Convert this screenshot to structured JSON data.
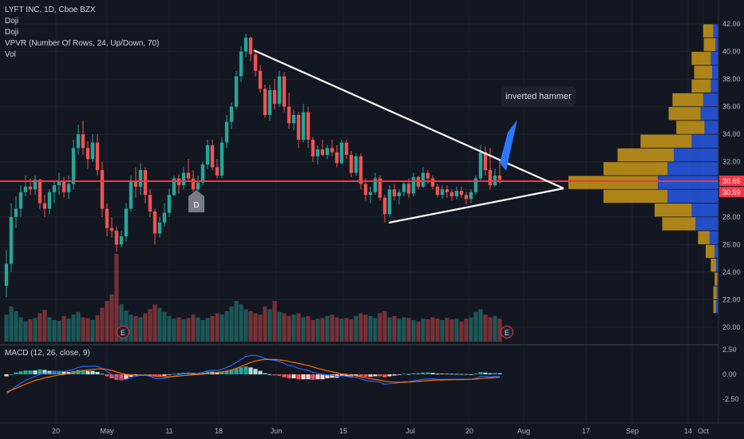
{
  "legend": {
    "title": "LYFT INC, 1D, Cboe BZX",
    "lines": [
      "Doji",
      "Doji",
      "VPVR (Number Of Rows, 24, Up/Down, 70)",
      "Vol"
    ]
  },
  "annotation": {
    "text": "inverted hammer"
  },
  "marker_d": "D",
  "marker_e": "E",
  "colors": {
    "bg": "#131722",
    "up": "#26a69a",
    "down": "#ef5350",
    "hline": "#f23645",
    "line": "#ffffff",
    "profile_up": "#2962ff",
    "profile_down": "#d4a017"
  },
  "chart_data": {
    "type": "candlestick",
    "symbol": "LYFT INC",
    "interval": "1D",
    "price_axis": {
      "ticks": [
        "42.00",
        "40.00",
        "38.00",
        "36.00",
        "34.00",
        "32.00",
        "30.00",
        "28.00",
        "26.00",
        "24.00",
        "22.00",
        "20.00"
      ],
      "range": [
        19.1,
        43.0
      ]
    },
    "price_labels": [
      "30.65",
      "30.59"
    ],
    "horizontal_line": 30.65,
    "x_axis_ticks": [
      "20",
      "May",
      "11",
      "18",
      "Jun",
      "15",
      "Jul",
      "20",
      "Aug",
      "17",
      "Sep",
      "14",
      "Oct"
    ],
    "macd": {
      "label": "MACD (12, 26, close, 9)",
      "ticks": [
        "2.50",
        "0.00",
        "-2.50"
      ],
      "range": [
        -3.6,
        3.0
      ]
    },
    "candles": [
      [
        23.0,
        25.6,
        22.2,
        24.6
      ],
      [
        24.6,
        29.0,
        24.0,
        28.0
      ],
      [
        28.0,
        29.5,
        27.2,
        28.6
      ],
      [
        28.6,
        30.3,
        28.0,
        29.8
      ],
      [
        29.8,
        31.0,
        29.5,
        30.2
      ],
      [
        30.2,
        30.8,
        29.6,
        30.0
      ],
      [
        30.0,
        31.0,
        29.6,
        30.7
      ],
      [
        30.7,
        30.8,
        28.6,
        29.0
      ],
      [
        29.0,
        29.6,
        28.0,
        28.6
      ],
      [
        28.6,
        30.0,
        28.2,
        29.8
      ],
      [
        29.8,
        30.6,
        29.0,
        30.3
      ],
      [
        30.3,
        31.2,
        29.6,
        30.6
      ],
      [
        30.6,
        30.9,
        29.4,
        29.8
      ],
      [
        29.8,
        31.0,
        29.3,
        30.4
      ],
      [
        30.4,
        33.6,
        30.0,
        33.0
      ],
      [
        33.0,
        34.7,
        32.5,
        34.0
      ],
      [
        34.0,
        35.0,
        32.5,
        33.0
      ],
      [
        33.0,
        33.5,
        31.5,
        32.2
      ],
      [
        32.2,
        34.0,
        32.0,
        33.4
      ],
      [
        33.4,
        34.0,
        31.0,
        31.4
      ],
      [
        31.4,
        32.0,
        28.0,
        28.6
      ],
      [
        28.6,
        29.0,
        26.6,
        27.2
      ],
      [
        27.2,
        28.0,
        26.5,
        27.0
      ],
      [
        27.0,
        27.3,
        25.5,
        26.0
      ],
      [
        26.0,
        27.0,
        25.8,
        26.6
      ],
      [
        26.6,
        29.0,
        26.2,
        28.6
      ],
      [
        28.6,
        31.0,
        28.4,
        30.6
      ],
      [
        30.6,
        31.6,
        29.4,
        30.2
      ],
      [
        30.2,
        31.9,
        29.6,
        31.4
      ],
      [
        31.4,
        31.6,
        29.0,
        29.6
      ],
      [
        29.6,
        30.0,
        28.0,
        28.4
      ],
      [
        28.4,
        28.6,
        26.0,
        26.8
      ],
      [
        26.8,
        28.0,
        26.5,
        27.6
      ],
      [
        27.6,
        29.0,
        27.3,
        28.3
      ],
      [
        28.3,
        30.0,
        28.0,
        29.6
      ],
      [
        29.6,
        31.0,
        29.5,
        30.8
      ],
      [
        30.8,
        31.1,
        29.7,
        30.3
      ],
      [
        30.3,
        31.6,
        30.0,
        31.2
      ],
      [
        31.2,
        32.2,
        30.6,
        30.8
      ],
      [
        30.8,
        31.4,
        29.8,
        30.0
      ],
      [
        30.0,
        31.0,
        29.9,
        30.5
      ],
      [
        30.5,
        32.0,
        30.3,
        31.8
      ],
      [
        31.8,
        33.6,
        31.5,
        33.2
      ],
      [
        33.2,
        33.6,
        31.4,
        31.6
      ],
      [
        31.6,
        32.2,
        30.8,
        31.0
      ],
      [
        31.0,
        33.8,
        30.8,
        33.4
      ],
      [
        33.4,
        35.4,
        33.0,
        34.9
      ],
      [
        34.9,
        36.3,
        34.4,
        36.0
      ],
      [
        36.0,
        38.6,
        35.8,
        38.2
      ],
      [
        38.2,
        40.4,
        37.8,
        40.0
      ],
      [
        40.0,
        41.3,
        39.6,
        41.0
      ],
      [
        41.0,
        41.1,
        39.3,
        39.8
      ],
      [
        39.8,
        40.0,
        38.2,
        38.6
      ],
      [
        38.6,
        39.0,
        37.0,
        37.3
      ],
      [
        37.3,
        37.6,
        35.2,
        35.4
      ],
      [
        35.4,
        37.6,
        35.0,
        37.2
      ],
      [
        37.2,
        38.0,
        35.8,
        36.2
      ],
      [
        36.2,
        38.6,
        36.0,
        38.2
      ],
      [
        38.2,
        38.5,
        35.6,
        36.0
      ],
      [
        36.0,
        37.0,
        34.4,
        34.8
      ],
      [
        34.8,
        35.8,
        34.3,
        35.4
      ],
      [
        35.4,
        35.6,
        33.0,
        33.6
      ],
      [
        33.6,
        36.2,
        33.4,
        35.6
      ],
      [
        35.6,
        36.0,
        33.0,
        33.6
      ],
      [
        33.6,
        33.8,
        32.0,
        32.4
      ],
      [
        32.4,
        33.2,
        31.8,
        32.9
      ],
      [
        32.9,
        33.6,
        32.4,
        32.5
      ],
      [
        32.5,
        33.2,
        32.2,
        33.0
      ],
      [
        33.0,
        33.6,
        32.4,
        32.7
      ],
      [
        32.7,
        33.2,
        31.6,
        31.9
      ],
      [
        31.9,
        33.6,
        31.8,
        33.4
      ],
      [
        33.4,
        33.6,
        32.2,
        32.5
      ],
      [
        32.5,
        32.8,
        30.9,
        31.2
      ],
      [
        31.2,
        32.6,
        31.0,
        32.4
      ],
      [
        32.4,
        32.6,
        30.0,
        30.4
      ],
      [
        30.4,
        30.8,
        29.2,
        29.6
      ],
      [
        29.6,
        30.2,
        29.0,
        29.8
      ],
      [
        29.8,
        31.2,
        29.6,
        30.8
      ],
      [
        30.8,
        31.0,
        29.2,
        29.4
      ],
      [
        29.4,
        29.6,
        27.6,
        28.2
      ],
      [
        28.2,
        30.3,
        28.0,
        30.0
      ],
      [
        30.0,
        30.4,
        29.2,
        29.5
      ],
      [
        29.5,
        30.0,
        28.9,
        29.8
      ],
      [
        29.8,
        30.6,
        29.5,
        30.4
      ],
      [
        30.4,
        30.8,
        29.4,
        29.7
      ],
      [
        29.7,
        31.2,
        29.5,
        30.9
      ],
      [
        30.9,
        31.0,
        30.0,
        30.2
      ],
      [
        30.2,
        31.6,
        30.1,
        31.2
      ],
      [
        31.2,
        31.4,
        30.4,
        30.8
      ],
      [
        30.8,
        31.0,
        30.0,
        30.2
      ],
      [
        30.2,
        30.4,
        29.4,
        29.6
      ],
      [
        29.6,
        30.3,
        29.3,
        30.0
      ],
      [
        30.0,
        30.3,
        29.4,
        29.8
      ],
      [
        29.8,
        30.0,
        29.2,
        29.5
      ],
      [
        29.5,
        30.2,
        29.3,
        29.9
      ],
      [
        29.9,
        30.2,
        29.4,
        29.6
      ],
      [
        29.6,
        29.8,
        28.9,
        29.3
      ],
      [
        29.3,
        30.0,
        29.0,
        29.8
      ],
      [
        29.8,
        31.0,
        29.6,
        30.8
      ],
      [
        30.8,
        33.2,
        30.6,
        32.7
      ],
      [
        32.7,
        33.1,
        31.0,
        31.4
      ],
      [
        31.4,
        33.0,
        30.0,
        30.3
      ],
      [
        30.3,
        31.5,
        30.2,
        31.0
      ],
      [
        31.0,
        32.2,
        30.4,
        30.7
      ]
    ],
    "volume": [
      40,
      52,
      45,
      36,
      30,
      33,
      35,
      42,
      47,
      36,
      32,
      31,
      38,
      34,
      40,
      44,
      36,
      35,
      32,
      39,
      50,
      60,
      70,
      130,
      55,
      46,
      40,
      38,
      36,
      42,
      48,
      55,
      50,
      44,
      38,
      34,
      36,
      33,
      35,
      40,
      36,
      32,
      35,
      38,
      42,
      40,
      45,
      52,
      60,
      55,
      48,
      45,
      42,
      40,
      52,
      48,
      60,
      44,
      42,
      38,
      40,
      42,
      36,
      38,
      32,
      34,
      35,
      38,
      40,
      36,
      34,
      35,
      33,
      38,
      42,
      40,
      38,
      35,
      42,
      45,
      36,
      38,
      34,
      36,
      35,
      32,
      30,
      34,
      33,
      36,
      34,
      32,
      35,
      33,
      34,
      30,
      34,
      36,
      44,
      48,
      40,
      36,
      38,
      34
    ],
    "volume_profile": [
      {
        "price": 41.5,
        "up": 8,
        "down": 16
      },
      {
        "price": 40.5,
        "up": 5,
        "down": 18
      },
      {
        "price": 39.5,
        "up": 12,
        "down": 30
      },
      {
        "price": 38.5,
        "up": 10,
        "down": 28
      },
      {
        "price": 37.5,
        "up": 12,
        "down": 30
      },
      {
        "price": 36.5,
        "up": 24,
        "down": 48
      },
      {
        "price": 35.5,
        "up": 28,
        "down": 50
      },
      {
        "price": 34.5,
        "up": 22,
        "down": 44
      },
      {
        "price": 33.5,
        "up": 42,
        "down": 80
      },
      {
        "price": 32.5,
        "up": 70,
        "down": 88
      },
      {
        "price": 31.5,
        "up": 80,
        "down": 100
      },
      {
        "price": 30.5,
        "up": 95,
        "down": 140
      },
      {
        "price": 29.5,
        "up": 80,
        "down": 100
      },
      {
        "price": 28.5,
        "up": 42,
        "down": 58
      },
      {
        "price": 27.5,
        "up": 36,
        "down": 52
      },
      {
        "price": 26.5,
        "up": 14,
        "down": 18
      },
      {
        "price": 25.5,
        "up": 6,
        "down": 14
      },
      {
        "price": 24.5,
        "up": 4,
        "down": 8
      },
      {
        "price": 23.5,
        "up": 2,
        "down": 4
      },
      {
        "price": 22.5,
        "up": 3,
        "down": 5
      },
      {
        "price": 21.5,
        "up": 4,
        "down": 4
      }
    ],
    "macd_line": [
      -2.0,
      -1.6,
      -1.2,
      -0.9,
      -0.6,
      -0.4,
      -0.2,
      0.0,
      0.1,
      0.1,
      0.2,
      0.3,
      0.3,
      0.35,
      0.5,
      0.7,
      0.8,
      0.8,
      0.85,
      0.8,
      0.6,
      0.3,
      0.0,
      -0.3,
      -0.5,
      -0.5,
      -0.3,
      -0.2,
      -0.1,
      -0.1,
      -0.2,
      -0.4,
      -0.45,
      -0.4,
      -0.3,
      -0.15,
      -0.05,
      0.05,
      0.1,
      0.1,
      0.1,
      0.2,
      0.35,
      0.4,
      0.4,
      0.5,
      0.7,
      0.9,
      1.2,
      1.5,
      1.8,
      1.9,
      1.9,
      1.8,
      1.6,
      1.5,
      1.4,
      1.3,
      1.1,
      0.9,
      0.8,
      0.6,
      0.5,
      0.4,
      0.2,
      0.1,
      0.0,
      -0.05,
      -0.1,
      -0.2,
      -0.15,
      -0.2,
      -0.3,
      -0.3,
      -0.45,
      -0.6,
      -0.7,
      -0.7,
      -0.8,
      -1.0,
      -0.95,
      -0.9,
      -0.85,
      -0.75,
      -0.75,
      -0.65,
      -0.6,
      -0.5,
      -0.45,
      -0.45,
      -0.5,
      -0.5,
      -0.5,
      -0.5,
      -0.5,
      -0.5,
      -0.5,
      -0.5,
      -0.4,
      -0.2,
      -0.2,
      -0.25,
      -0.2,
      -0.2
    ],
    "signal_line": [
      -1.8,
      -1.6,
      -1.4,
      -1.2,
      -1.0,
      -0.8,
      -0.6,
      -0.5,
      -0.35,
      -0.25,
      -0.15,
      -0.05,
      0.0,
      0.1,
      0.15,
      0.25,
      0.35,
      0.45,
      0.5,
      0.55,
      0.55,
      0.5,
      0.4,
      0.25,
      0.1,
      0.0,
      -0.05,
      -0.1,
      -0.1,
      -0.1,
      -0.12,
      -0.18,
      -0.22,
      -0.25,
      -0.25,
      -0.22,
      -0.18,
      -0.12,
      -0.08,
      -0.05,
      -0.02,
      0.02,
      0.08,
      0.14,
      0.2,
      0.25,
      0.35,
      0.45,
      0.6,
      0.8,
      1.0,
      1.2,
      1.35,
      1.45,
      1.5,
      1.5,
      1.5,
      1.45,
      1.4,
      1.3,
      1.2,
      1.1,
      1.0,
      0.9,
      0.75,
      0.6,
      0.5,
      0.35,
      0.25,
      0.15,
      0.05,
      0.0,
      -0.1,
      -0.15,
      -0.25,
      -0.35,
      -0.45,
      -0.5,
      -0.6,
      -0.7,
      -0.75,
      -0.78,
      -0.8,
      -0.8,
      -0.78,
      -0.75,
      -0.72,
      -0.68,
      -0.64,
      -0.6,
      -0.58,
      -0.57,
      -0.56,
      -0.55,
      -0.54,
      -0.53,
      -0.52,
      -0.5,
      -0.48,
      -0.42,
      -0.38,
      -0.36,
      -0.33,
      -0.3
    ]
  }
}
